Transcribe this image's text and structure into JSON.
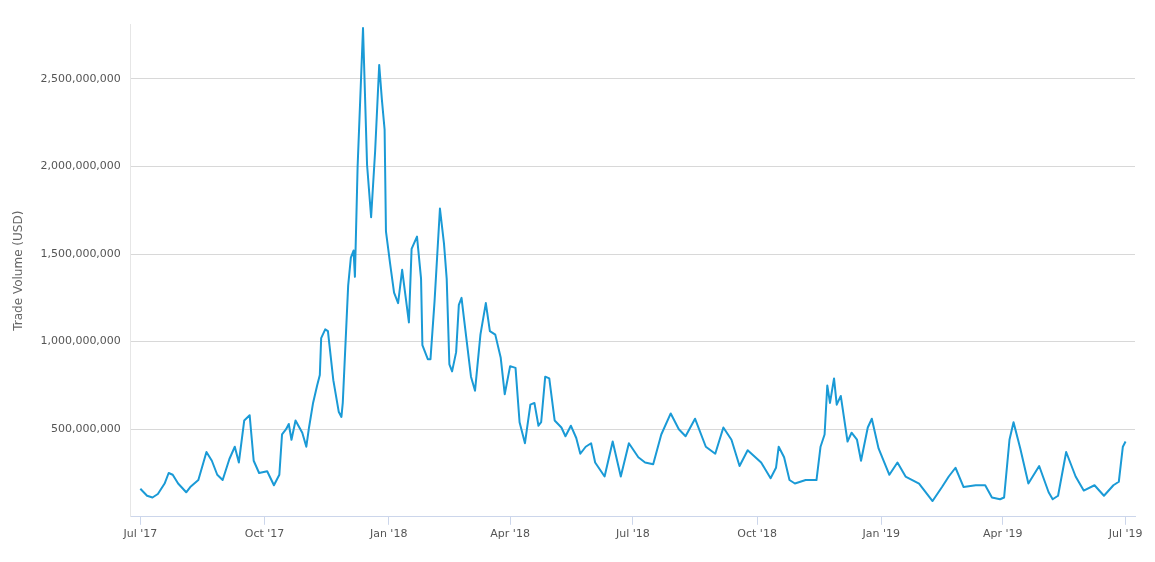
{
  "chart_data": {
    "type": "line",
    "ylabel": "Trade Volume (USD)",
    "x": [
      "2017-07-01",
      "2017-07-06",
      "2017-07-10",
      "2017-07-14",
      "2017-07-19",
      "2017-07-22",
      "2017-07-25",
      "2017-07-29",
      "2017-08-04",
      "2017-08-07",
      "2017-08-13",
      "2017-08-19",
      "2017-08-23",
      "2017-08-27",
      "2017-08-31",
      "2017-09-05",
      "2017-09-09",
      "2017-09-12",
      "2017-09-16",
      "2017-09-20",
      "2017-09-23",
      "2017-09-27",
      "2017-10-03",
      "2017-10-08",
      "2017-10-12",
      "2017-10-14",
      "2017-10-17",
      "2017-10-19",
      "2017-10-21",
      "2017-10-24",
      "2017-10-29",
      "2017-11-01",
      "2017-11-03",
      "2017-11-06",
      "2017-11-09",
      "2017-11-11",
      "2017-11-12",
      "2017-11-15",
      "2017-11-17",
      "2017-11-21",
      "2017-11-25",
      "2017-11-27",
      "2017-11-28",
      "2017-12-02",
      "2017-12-04",
      "2017-12-06",
      "2017-12-07",
      "2017-12-09",
      "2017-12-13",
      "2017-12-16",
      "2017-12-19",
      "2017-12-22",
      "2017-12-25",
      "2017-12-27",
      "2017-12-29",
      "2017-12-30",
      "2018-01-02",
      "2018-01-05",
      "2018-01-08",
      "2018-01-11",
      "2018-01-16",
      "2018-01-18",
      "2018-01-22",
      "2018-01-25",
      "2018-01-26",
      "2018-01-30",
      "2018-02-01",
      "2018-02-04",
      "2018-02-08",
      "2018-02-11",
      "2018-02-13",
      "2018-02-15",
      "2018-02-17",
      "2018-02-20",
      "2018-02-22",
      "2018-02-24",
      "2018-02-26",
      "2018-03-03",
      "2018-03-06",
      "2018-03-10",
      "2018-03-14",
      "2018-03-17",
      "2018-03-21",
      "2018-03-25",
      "2018-03-28",
      "2018-04-01",
      "2018-04-05",
      "2018-04-08",
      "2018-04-12",
      "2018-04-16",
      "2018-04-19",
      "2018-04-22",
      "2018-04-24",
      "2018-04-27",
      "2018-04-30",
      "2018-05-04",
      "2018-05-09",
      "2018-05-12",
      "2018-05-16",
      "2018-05-20",
      "2018-05-23",
      "2018-05-27",
      "2018-05-31",
      "2018-06-03",
      "2018-06-10",
      "2018-06-16",
      "2018-06-22",
      "2018-06-28",
      "2018-07-05",
      "2018-07-10",
      "2018-07-16",
      "2018-07-22",
      "2018-07-29",
      "2018-08-04",
      "2018-08-09",
      "2018-08-16",
      "2018-08-24",
      "2018-08-31",
      "2018-09-06",
      "2018-09-12",
      "2018-09-18",
      "2018-09-24",
      "2018-10-04",
      "2018-10-11",
      "2018-10-15",
      "2018-10-17",
      "2018-10-21",
      "2018-10-25",
      "2018-10-29",
      "2018-11-06",
      "2018-11-14",
      "2018-11-17",
      "2018-11-20",
      "2018-11-22",
      "2018-11-24",
      "2018-11-27",
      "2018-11-29",
      "2018-12-02",
      "2018-12-07",
      "2018-12-10",
      "2018-12-14",
      "2018-12-17",
      "2018-12-22",
      "2018-12-25",
      "2018-12-30",
      "2019-01-07",
      "2019-01-13",
      "2019-01-19",
      "2019-01-29",
      "2019-02-08",
      "2019-02-15",
      "2019-02-20",
      "2019-02-25",
      "2019-03-03",
      "2019-03-12",
      "2019-03-19",
      "2019-03-24",
      "2019-03-30",
      "2019-04-02",
      "2019-04-06",
      "2019-04-09",
      "2019-04-14",
      "2019-04-20",
      "2019-04-28",
      "2019-05-05",
      "2019-05-08",
      "2019-05-12",
      "2019-05-18",
      "2019-05-25",
      "2019-05-31",
      "2019-06-08",
      "2019-06-15",
      "2019-06-22",
      "2019-06-26",
      "2019-06-29",
      "2019-07-01"
    ],
    "series": [
      {
        "color": "#1a9ad6",
        "values": [
          160000000,
          120000000,
          110000000,
          130000000,
          190000000,
          250000000,
          240000000,
          190000000,
          140000000,
          170000000,
          210000000,
          370000000,
          320000000,
          240000000,
          210000000,
          330000000,
          400000000,
          310000000,
          550000000,
          580000000,
          320000000,
          250000000,
          260000000,
          180000000,
          240000000,
          470000000,
          500000000,
          530000000,
          440000000,
          550000000,
          480000000,
          400000000,
          510000000,
          650000000,
          750000000,
          810000000,
          1020000000,
          1070000000,
          1060000000,
          780000000,
          600000000,
          570000000,
          650000000,
          1320000000,
          1480000000,
          1520000000,
          1370000000,
          2000000000,
          2790000000,
          2010000000,
          1710000000,
          2090000000,
          2580000000,
          2380000000,
          2210000000,
          1630000000,
          1450000000,
          1280000000,
          1220000000,
          1410000000,
          1110000000,
          1530000000,
          1600000000,
          1360000000,
          980000000,
          900000000,
          900000000,
          1230000000,
          1760000000,
          1560000000,
          1360000000,
          870000000,
          830000000,
          940000000,
          1210000000,
          1250000000,
          1120000000,
          800000000,
          720000000,
          1040000000,
          1220000000,
          1060000000,
          1040000000,
          910000000,
          700000000,
          860000000,
          850000000,
          540000000,
          420000000,
          640000000,
          650000000,
          520000000,
          540000000,
          800000000,
          790000000,
          550000000,
          510000000,
          460000000,
          520000000,
          450000000,
          360000000,
          400000000,
          420000000,
          310000000,
          230000000,
          430000000,
          230000000,
          420000000,
          340000000,
          310000000,
          300000000,
          470000000,
          590000000,
          500000000,
          460000000,
          560000000,
          400000000,
          360000000,
          510000000,
          440000000,
          290000000,
          380000000,
          310000000,
          220000000,
          280000000,
          400000000,
          340000000,
          210000000,
          190000000,
          210000000,
          210000000,
          400000000,
          470000000,
          750000000,
          650000000,
          790000000,
          640000000,
          690000000,
          430000000,
          480000000,
          440000000,
          320000000,
          510000000,
          560000000,
          390000000,
          240000000,
          310000000,
          230000000,
          190000000,
          90000000,
          170000000,
          230000000,
          280000000,
          170000000,
          180000000,
          180000000,
          110000000,
          100000000,
          110000000,
          440000000,
          540000000,
          390000000,
          190000000,
          290000000,
          140000000,
          100000000,
          120000000,
          370000000,
          230000000,
          150000000,
          180000000,
          120000000,
          180000000,
          200000000,
          400000000,
          430000000
        ]
      }
    ],
    "xlim": [
      "2017-06-24",
      "2019-07-08"
    ],
    "xticks": [
      {
        "value": "2017-07-01",
        "label": "Jul '17"
      },
      {
        "value": "2017-10-01",
        "label": "Oct '17"
      },
      {
        "value": "2018-01-01",
        "label": "Jan '18"
      },
      {
        "value": "2018-04-01",
        "label": "Apr '18"
      },
      {
        "value": "2018-07-01",
        "label": "Jul '18"
      },
      {
        "value": "2018-10-01",
        "label": "Oct '18"
      },
      {
        "value": "2019-01-01",
        "label": "Jan '19"
      },
      {
        "value": "2019-04-01",
        "label": "Apr '19"
      },
      {
        "value": "2019-07-01",
        "label": "Jul '19"
      }
    ],
    "ylim": [
      0,
      2810000000
    ],
    "yticks": [
      {
        "value": 500000000,
        "label": "500,000,000"
      },
      {
        "value": 1000000000,
        "label": "1,000,000,000"
      },
      {
        "value": 1500000000,
        "label": "1,500,000,000"
      },
      {
        "value": 2000000000,
        "label": "2,000,000,000"
      },
      {
        "value": 2500000000,
        "label": "2,500,000,000"
      }
    ],
    "grid": "y",
    "legend": false,
    "marker": "none",
    "line_style": "solid"
  }
}
